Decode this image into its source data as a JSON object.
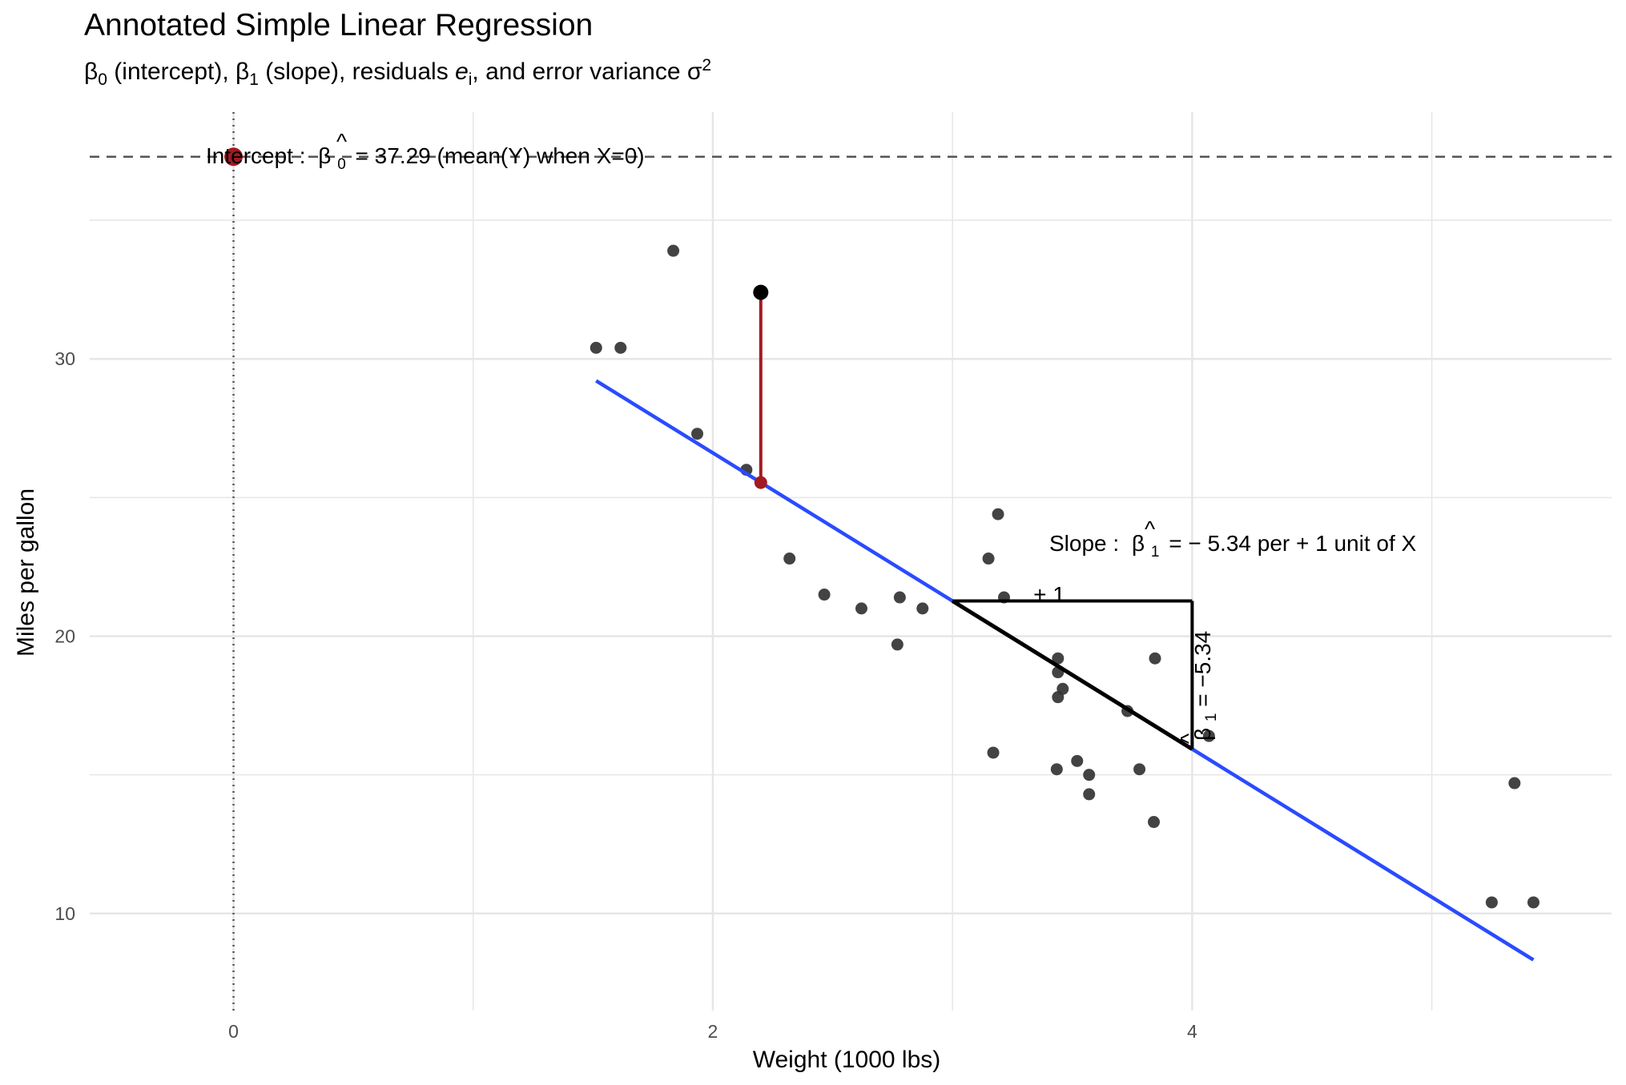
{
  "title": "Annotated Simple Linear Regression",
  "subtitle": {
    "part1": "β",
    "sub1": "0",
    "part2": " (intercept), β",
    "sub2": "1",
    "part3": " (slope), residuals ",
    "e": "e",
    "sub3": "i",
    "part4": ", and error variance σ",
    "sup4": "2"
  },
  "colors": {
    "point": "#333333",
    "fit_line": "#2a4bff",
    "residual": "#a31a1f",
    "intercept_point": "#a31a1f",
    "grid": "#e6e6e6",
    "guide_line": "#555555",
    "triangle": "#000000"
  },
  "annotations": {
    "intercept_text_pre": "Intercept :",
    "intercept_beta": "β",
    "intercept_hat": "^",
    "intercept_sub": "0",
    "intercept_text_post": "= 37.29 (mean(Y) when X=0)",
    "slope_text_pre": "Slope :",
    "slope_beta": "β",
    "slope_hat": "^",
    "slope_sub": "1",
    "slope_text_post": "= − 5.34  per  + 1 unit of X",
    "run_label": "+ 1",
    "rise_label_beta": "β",
    "rise_label_hat": "^",
    "rise_label_sub": "1",
    "rise_label_post": " = −5.34"
  },
  "chart_data": {
    "type": "scatter",
    "xlabel": "Weight (1000 lbs)",
    "ylabel": "Miles per gallon",
    "xlim": [
      -0.6,
      5.75
    ],
    "ylim": [
      6.5,
      38.9
    ],
    "x_ticks": [
      0,
      2,
      4
    ],
    "x_minor": [
      1,
      3,
      5
    ],
    "y_ticks": [
      10,
      20,
      30
    ],
    "y_minor": [
      15,
      25,
      35
    ],
    "grid": true,
    "points": [
      {
        "x": 2.62,
        "y": 21.0
      },
      {
        "x": 2.875,
        "y": 21.0
      },
      {
        "x": 2.32,
        "y": 22.8
      },
      {
        "x": 3.215,
        "y": 21.4
      },
      {
        "x": 3.44,
        "y": 18.7
      },
      {
        "x": 3.46,
        "y": 18.1
      },
      {
        "x": 3.57,
        "y": 14.3
      },
      {
        "x": 3.19,
        "y": 24.4
      },
      {
        "x": 3.15,
        "y": 22.8
      },
      {
        "x": 3.44,
        "y": 19.2
      },
      {
        "x": 3.44,
        "y": 17.8
      },
      {
        "x": 4.07,
        "y": 16.4
      },
      {
        "x": 3.73,
        "y": 17.3
      },
      {
        "x": 3.78,
        "y": 15.2
      },
      {
        "x": 5.25,
        "y": 10.4
      },
      {
        "x": 5.424,
        "y": 10.4
      },
      {
        "x": 5.345,
        "y": 14.7
      },
      {
        "x": 2.2,
        "y": 32.4
      },
      {
        "x": 1.615,
        "y": 30.4
      },
      {
        "x": 1.835,
        "y": 33.9
      },
      {
        "x": 2.465,
        "y": 21.5
      },
      {
        "x": 3.52,
        "y": 15.5
      },
      {
        "x": 3.435,
        "y": 15.2
      },
      {
        "x": 3.84,
        "y": 13.3
      },
      {
        "x": 3.845,
        "y": 19.2
      },
      {
        "x": 1.935,
        "y": 27.3
      },
      {
        "x": 2.14,
        "y": 26.0
      },
      {
        "x": 1.513,
        "y": 30.4
      },
      {
        "x": 3.17,
        "y": 15.8
      },
      {
        "x": 2.77,
        "y": 19.7
      },
      {
        "x": 3.57,
        "y": 15.0
      },
      {
        "x": 2.78,
        "y": 21.4
      }
    ],
    "intercept": 37.29,
    "slope": -5.34,
    "fit_range": [
      1.513,
      5.424
    ],
    "intercept_point": {
      "x": 0,
      "y": 37.29
    },
    "highlight_point": {
      "x": 2.2,
      "y": 32.4,
      "fitted": 25.54
    },
    "slope_triangle": {
      "x0": 3,
      "x1": 4,
      "y_top": 21.27,
      "y_bottom": 15.93
    }
  }
}
